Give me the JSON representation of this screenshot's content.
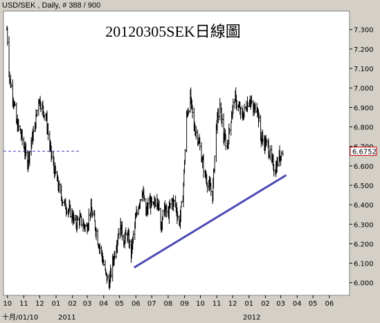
{
  "header": {
    "symbol_info": "USD/SEK , Daily, # 388 / 900",
    "title": "20120305SEK日線圖"
  },
  "price_tag": "6.6752",
  "bottom_labels": {
    "left": "十月/01/10",
    "year_2011": "2011",
    "year_2012": "2012"
  },
  "colors": {
    "background": "#d4d0c8",
    "plot": "#ffffff",
    "bars": "#000000",
    "trendline": "#4b49b4",
    "price_line": "#4040c0",
    "price_tag_border": "#c00000"
  },
  "chart_data": {
    "type": "line",
    "series_style": "OHLC bars (daily)",
    "title": "20120305SEK日線圖",
    "xlabel": "",
    "ylabel": "",
    "ylim": [
      5.95,
      7.38
    ],
    "yticks": [
      "7.300",
      "7.200",
      "7.100",
      "7.000",
      "6.900",
      "6.800",
      "6.700",
      "6.600",
      "6.500",
      "6.400",
      "6.300",
      "6.200",
      "6.100",
      "6.000"
    ],
    "xticks": [
      "10",
      "11",
      "12",
      "01",
      "02",
      "03",
      "04",
      "05",
      "06",
      "07",
      "08",
      "09",
      "10",
      "11",
      "12",
      "01",
      "02",
      "03",
      "04",
      "05",
      "06"
    ],
    "x": [
      "2010-09-30",
      "2010-10-05",
      "2010-10-12",
      "2010-10-18",
      "2010-10-25",
      "2010-11-01",
      "2010-11-08",
      "2010-11-15",
      "2010-11-22",
      "2010-11-29",
      "2010-12-06",
      "2010-12-13",
      "2010-12-20",
      "2010-12-27",
      "2011-01-03",
      "2011-01-10",
      "2011-01-17",
      "2011-01-24",
      "2011-01-31",
      "2011-02-07",
      "2011-02-14",
      "2011-02-21",
      "2011-02-28",
      "2011-03-07",
      "2011-03-14",
      "2011-03-21",
      "2011-03-28",
      "2011-04-04",
      "2011-04-11",
      "2011-04-18",
      "2011-04-25",
      "2011-05-02",
      "2011-05-09",
      "2011-05-16",
      "2011-05-23",
      "2011-05-30",
      "2011-06-06",
      "2011-06-13",
      "2011-06-20",
      "2011-06-27",
      "2011-07-04",
      "2011-07-11",
      "2011-07-18",
      "2011-07-25",
      "2011-08-01",
      "2011-08-08",
      "2011-08-15",
      "2011-08-22",
      "2011-08-29",
      "2011-09-05",
      "2011-09-12",
      "2011-09-19",
      "2011-09-26",
      "2011-10-03",
      "2011-10-10",
      "2011-10-17",
      "2011-10-24",
      "2011-10-31",
      "2011-11-07",
      "2011-11-14",
      "2011-11-21",
      "2011-11-28",
      "2011-12-05",
      "2011-12-12",
      "2011-12-19",
      "2011-12-26",
      "2012-01-02",
      "2012-01-09",
      "2012-01-16",
      "2012-01-23",
      "2012-01-30",
      "2012-02-06",
      "2012-02-13",
      "2012-02-20",
      "2012-02-27",
      "2012-03-05"
    ],
    "series": [
      {
        "style": "ohlc-bars",
        "values": [
          7.3,
          7.05,
          6.95,
          6.82,
          6.78,
          6.7,
          6.62,
          6.72,
          6.8,
          6.95,
          6.9,
          6.85,
          6.7,
          6.6,
          6.52,
          6.45,
          6.4,
          6.38,
          6.35,
          6.3,
          6.33,
          6.3,
          6.28,
          6.38,
          6.32,
          6.22,
          6.15,
          6.05,
          5.99,
          6.1,
          6.2,
          6.3,
          6.22,
          6.25,
          6.15,
          6.3,
          6.4,
          6.48,
          6.35,
          6.42,
          6.38,
          6.45,
          6.3,
          6.38,
          6.35,
          6.42,
          6.4,
          6.3,
          6.45,
          6.85,
          6.95,
          6.8,
          6.75,
          6.65,
          6.55,
          6.5,
          6.45,
          6.8,
          6.92,
          6.75,
          6.7,
          6.85,
          6.95,
          6.9,
          6.85,
          6.9,
          6.95,
          6.88,
          6.92,
          6.75,
          6.72,
          6.7,
          6.62,
          6.58,
          6.65,
          6.675
        ]
      },
      {
        "style": "trendline",
        "values": [
          6.08,
          6.55
        ],
        "x": [
          "2011-05-30",
          "2012-03-10"
        ]
      }
    ],
    "current_price": 6.6752,
    "grid": false,
    "legend": "none"
  }
}
